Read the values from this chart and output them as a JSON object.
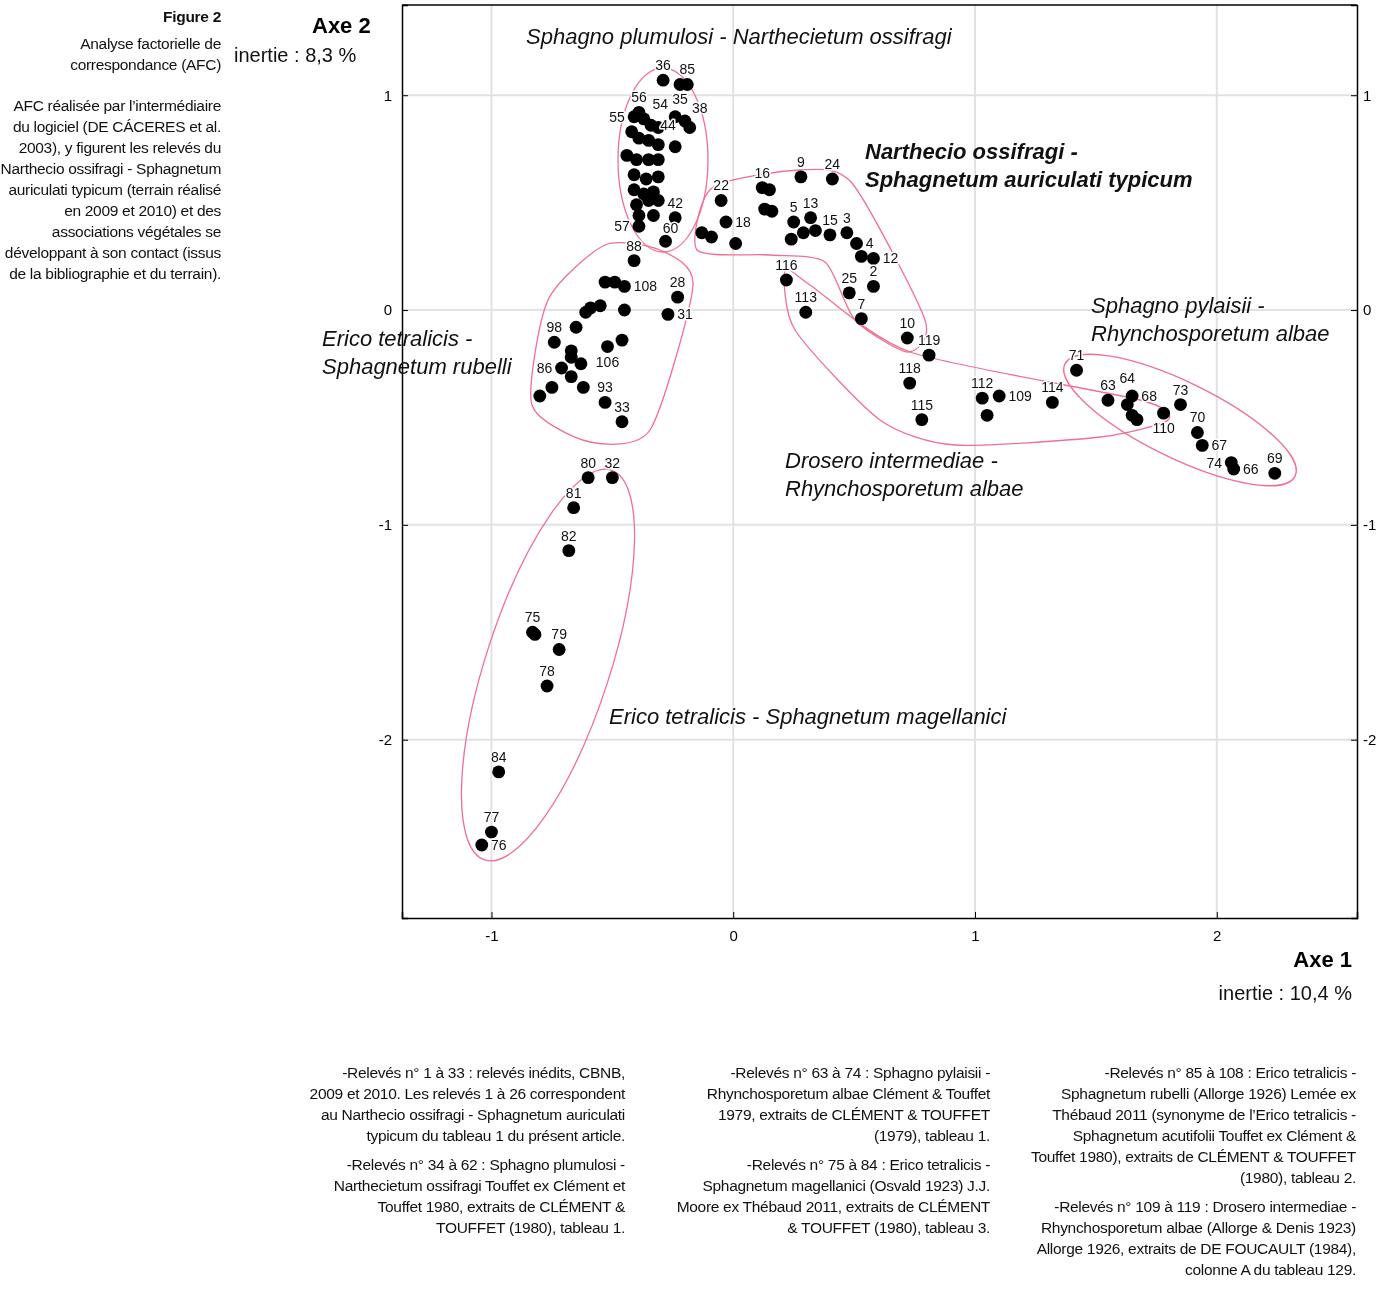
{
  "chart_data": {
    "type": "scatter",
    "title": "Figure 2",
    "subtitle": "Analyse factorielle de correspondance (AFC)",
    "xlabel": "Axe 1",
    "ylabel": "Axe 2",
    "xlim": [
      -1.37,
      2.58
    ],
    "xticks": [
      -1,
      0,
      1,
      2
    ],
    "ylim": [
      -2.83,
      1.42
    ],
    "yticks": [
      -2,
      -1,
      0,
      1
    ],
    "y2lim": [
      -2.83,
      1.42
    ],
    "y2ticks": [
      -2,
      -1,
      0,
      1
    ],
    "grid": true,
    "marker": "circle",
    "series": [
      {
        "color": "#000000",
        "x": [
          -0.29,
          -0.22,
          -0.19,
          -0.24,
          -0.2,
          -0.18,
          -0.24,
          -0.39,
          -0.41,
          -0.37,
          -0.34,
          -0.31,
          -0.42,
          -0.39,
          -0.35,
          -0.31,
          -0.44,
          -0.4,
          -0.35,
          -0.31,
          -0.41,
          -0.36,
          -0.31,
          -0.41,
          -0.37,
          -0.33,
          -0.4,
          -0.35,
          -0.39,
          -0.31,
          -0.24,
          -0.33,
          -0.39,
          -0.28,
          -0.05,
          0.12,
          0.15,
          0.28,
          0.41,
          0.13,
          0.16,
          -0.13,
          -0.09,
          -0.03,
          0.01,
          0.25,
          0.32,
          0.29,
          0.34,
          0.4,
          0.47,
          0.51,
          0.53,
          0.58,
          0.58,
          0.48,
          0.53,
          0.24,
          0.22,
          0.3,
          0.72,
          0.81,
          0.73,
          0.78,
          1.03,
          1.1,
          1.05,
          1.32,
          1.42,
          1.55,
          1.63,
          1.65,
          1.65,
          1.67,
          1.78,
          1.85,
          1.92,
          1.94,
          2.06,
          2.07,
          2.24,
          -0.41,
          -0.53,
          -0.49,
          -0.45,
          -0.23,
          -0.27,
          -0.55,
          -0.59,
          -0.61,
          -0.45,
          -0.65,
          -0.46,
          -0.52,
          -0.74,
          -0.67,
          -0.67,
          -0.63,
          -0.71,
          -0.67,
          -0.62,
          -0.75,
          -0.8,
          -0.53,
          -0.46,
          -0.6,
          -0.5,
          -0.66,
          -0.68,
          -0.83,
          -0.82,
          -0.72,
          -0.77,
          -0.97,
          -1.0,
          -1.04
        ],
        "values": [
          1.07,
          1.05,
          1.05,
          0.9,
          0.88,
          0.85,
          0.76,
          0.92,
          0.9,
          0.89,
          0.86,
          0.85,
          0.83,
          0.8,
          0.79,
          0.77,
          0.72,
          0.7,
          0.7,
          0.7,
          0.63,
          0.61,
          0.62,
          0.56,
          0.54,
          0.55,
          0.49,
          0.51,
          0.44,
          0.51,
          0.43,
          0.44,
          0.39,
          0.32,
          0.51,
          0.57,
          0.56,
          0.62,
          0.61,
          0.47,
          0.46,
          0.36,
          0.34,
          0.41,
          0.31,
          0.41,
          0.43,
          0.36,
          0.37,
          0.35,
          0.36,
          0.31,
          0.25,
          0.24,
          0.11,
          0.08,
          -0.04,
          0.33,
          0.14,
          -0.01,
          -0.13,
          -0.21,
          -0.34,
          -0.51,
          -0.41,
          -0.4,
          -0.49,
          -0.43,
          -0.28,
          -0.42,
          -0.44,
          -0.4,
          -0.49,
          -0.51,
          -0.48,
          -0.44,
          -0.57,
          -0.63,
          -0.71,
          -0.74,
          -0.76,
          0.23,
          0.13,
          0.13,
          0.11,
          0.06,
          -0.02,
          0.02,
          0.01,
          -0.01,
          0.0,
          -0.08,
          -0.14,
          -0.17,
          -0.15,
          -0.19,
          -0.22,
          -0.25,
          -0.27,
          -0.31,
          -0.36,
          -0.36,
          -0.4,
          -0.43,
          -0.52,
          -0.78,
          -0.78,
          -0.92,
          -1.12,
          -1.5,
          -1.51,
          -1.58,
          -1.75,
          -2.15,
          -2.43,
          -2.49
        ]
      }
    ],
    "annotations": [
      "inertie : 8,3 %",
      "inertie : 10,4 %",
      "AFC réalisée par l’intermédiaire du logiciel (DE CÁCERES et al. 2003), y figurent les relevés du Narthecio ossifragi - Sphagnetum auriculati typicum (terrain réalisé en 2009 et 2010) et des associations végétales se développant à son contact (issus de la bibliographie et du terrain).",
      "-Relevés n° 1 à 33 : relevés inédits, CBNB, 2009 et 2010. Les relevés 1 à 26 correspondent au Narthecio ossifragi - Sphagnetum auriculati typicum du tableau 1 du présent article.",
      "-Relevés n° 34 à 62 : Sphagno plumulosi - Narthecietum ossifragi Touffet ex Clément et Touffet 1980, extraits de CLÉMENT & TOUFFET (1980), tableau 1.",
      "-Relevés n° 63 à 74 : Sphagno pylaisii - Rhynchosporetum albae Clément & Touffet 1979, extraits de CLÉMENT & TOUFFET (1979), tableau 1.",
      "-Relevés n° 75 à 84 : Erico tetralicis - Sphagnetum magellanici (Osvald 1923) J.J. Moore ex Thébaud 2011, extraits de CLÉMENT & TOUFFET (1980), tableau 3.",
      "-Relevés n° 85 à 108 : Erico tetralicis - Sphagnetum rubelli (Allorge 1926) Lemée ex Thébaud 2011 (synonyme de l’Erico tetralicis - Sphagnetum acutifolii Touffet ex Clément & Touffet 1980), extraits de CLÉMENT & TOUFFET (1980), tableau 2.",
      "-Relevés n° 109 à 119 : Drosero intermediae - Rhynchosporetum albae (Allorge & Denis 1923) Allorge 1926, extraits de DE FOUCAULT (1984), colonne A du tableau 129.",
      "Sphagno plumulosi - Narthecietum ossifragi",
      "Narthecio ossifragi -\nSphagnetum auriculati typicum",
      "Erico tetralicis -\nSphagnetum rubelli",
      "Sphagno pylaisii -\nRhynchosporetum albae",
      "Drosero intermediae -\nRhynchosporetum albae",
      "Erico tetralicis - Sphagnetum magellanici",
      {
        "text": "36",
        "x": -0.29,
        "y": 1.07
      },
      {
        "text": "35",
        "x": -0.22,
        "y": 1.05
      },
      {
        "text": "85",
        "x": -0.19,
        "y": 1.05
      },
      {
        "text": "54",
        "x": -0.24,
        "y": 0.9
      },
      {
        "text": "38",
        "x": -0.2,
        "y": 0.88
      },
      {
        "text": "56",
        "x": -0.39,
        "y": 0.92
      },
      {
        "text": "55",
        "x": -0.41,
        "y": 0.9
      },
      {
        "text": "44",
        "x": -0.34,
        "y": 0.86
      },
      {
        "text": "42",
        "x": -0.24,
        "y": 0.43
      },
      {
        "text": "60",
        "x": -0.33,
        "y": 0.44
      },
      {
        "text": "57",
        "x": -0.39,
        "y": 0.39
      },
      {
        "text": "22",
        "x": -0.05,
        "y": 0.51
      },
      {
        "text": "16",
        "x": 0.12,
        "y": 0.57
      },
      {
        "text": "9",
        "x": 0.28,
        "y": 0.62
      },
      {
        "text": "24",
        "x": 0.41,
        "y": 0.61
      },
      {
        "text": "18",
        "x": -0.03,
        "y": 0.41
      },
      {
        "text": "5",
        "x": 0.25,
        "y": 0.41
      },
      {
        "text": "13",
        "x": 0.32,
        "y": 0.43
      },
      {
        "text": "15",
        "x": 0.4,
        "y": 0.35
      },
      {
        "text": "3",
        "x": 0.47,
        "y": 0.36
      },
      {
        "text": "4",
        "x": 0.51,
        "y": 0.31
      },
      {
        "text": "12",
        "x": 0.58,
        "y": 0.24
      },
      {
        "text": "2",
        "x": 0.58,
        "y": 0.11
      },
      {
        "text": "25",
        "x": 0.48,
        "y": 0.08
      },
      {
        "text": "7",
        "x": 0.53,
        "y": -0.04
      },
      {
        "text": "116",
        "x": 0.22,
        "y": 0.14
      },
      {
        "text": "113",
        "x": 0.3,
        "y": -0.01
      },
      {
        "text": "10",
        "x": 0.72,
        "y": -0.13
      },
      {
        "text": "119",
        "x": 0.81,
        "y": -0.21
      },
      {
        "text": "118",
        "x": 0.73,
        "y": -0.34
      },
      {
        "text": "115",
        "x": 0.78,
        "y": -0.51
      },
      {
        "text": "112",
        "x": 1.03,
        "y": -0.41
      },
      {
        "text": "109",
        "x": 1.1,
        "y": -0.4
      },
      {
        "text": "114",
        "x": 1.32,
        "y": -0.43
      },
      {
        "text": "71",
        "x": 1.42,
        "y": -0.28
      },
      {
        "text": "63",
        "x": 1.55,
        "y": -0.42
      },
      {
        "text": "64",
        "x": 1.63,
        "y": -0.44
      },
      {
        "text": "68",
        "x": 1.65,
        "y": -0.4
      },
      {
        "text": "110",
        "x": 1.78,
        "y": -0.48
      },
      {
        "text": "73",
        "x": 1.85,
        "y": -0.44
      },
      {
        "text": "70",
        "x": 1.92,
        "y": -0.57
      },
      {
        "text": "67",
        "x": 1.94,
        "y": -0.63
      },
      {
        "text": "74",
        "x": 2.06,
        "y": -0.71
      },
      {
        "text": "66",
        "x": 2.07,
        "y": -0.74
      },
      {
        "text": "69",
        "x": 2.24,
        "y": -0.76
      },
      {
        "text": "88",
        "x": -0.41,
        "y": 0.23
      },
      {
        "text": "108",
        "x": -0.45,
        "y": 0.11
      },
      {
        "text": "28",
        "x": -0.23,
        "y": 0.06
      },
      {
        "text": "31",
        "x": -0.27,
        "y": -0.02
      },
      {
        "text": "106",
        "x": -0.52,
        "y": -0.17
      },
      {
        "text": "98",
        "x": -0.74,
        "y": -0.15
      },
      {
        "text": "86",
        "x": -0.71,
        "y": -0.27
      },
      {
        "text": "93",
        "x": -0.53,
        "y": -0.43
      },
      {
        "text": "33",
        "x": -0.46,
        "y": -0.52
      },
      {
        "text": "80",
        "x": -0.6,
        "y": -0.78
      },
      {
        "text": "32",
        "x": -0.5,
        "y": -0.78
      },
      {
        "text": "81",
        "x": -0.66,
        "y": -0.92
      },
      {
        "text": "82",
        "x": -0.68,
        "y": -1.12
      },
      {
        "text": "75",
        "x": -0.83,
        "y": -1.5
      },
      {
        "text": "79",
        "x": -0.72,
        "y": -1.58
      },
      {
        "text": "78",
        "x": -0.77,
        "y": -1.75
      },
      {
        "text": "84",
        "x": -0.97,
        "y": -2.15
      },
      {
        "text": "77",
        "x": -1.0,
        "y": -2.43
      },
      {
        "text": "76",
        "x": -1.04,
        "y": -2.49
      }
    ]
  }
}
